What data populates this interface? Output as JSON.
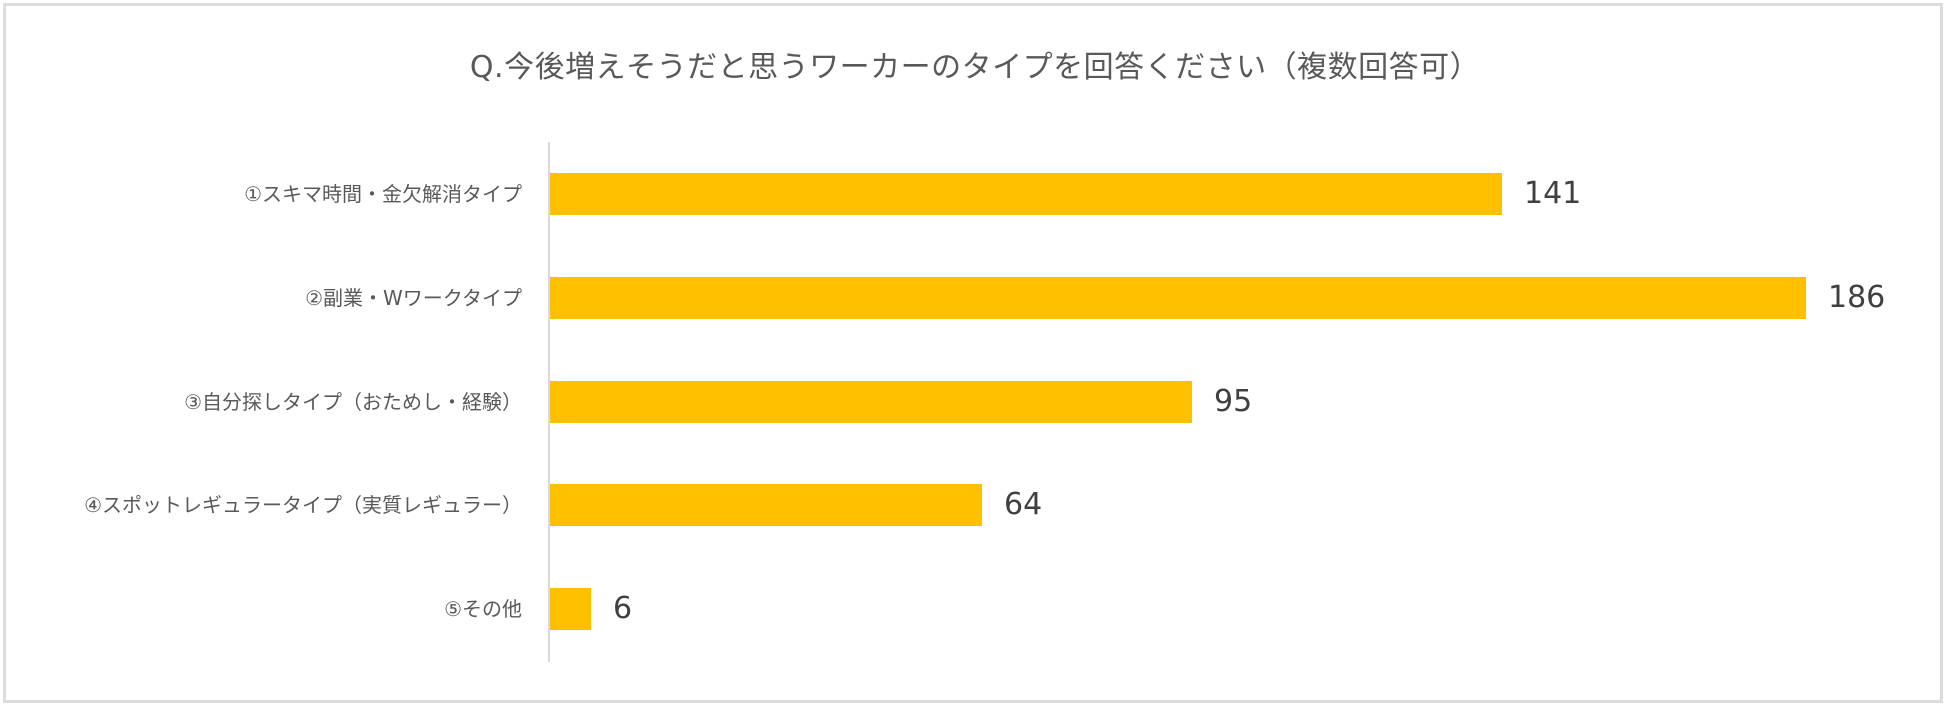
{
  "chart": {
    "title": "Q.今後増えそうだと思うワーカーのタイプを回答ください（複数回答可）",
    "bar_color": "#FFC000",
    "axis_color": "#D9D9D9",
    "categories": [
      "①スキマ時間・金欠解消タイプ",
      "②副業・Wワークタイプ",
      "③自分探しタイプ（おためし・経験）",
      "④スポットレギュラータイプ（実質レギュラー）",
      "⑤その他"
    ],
    "values": [
      "141",
      "186",
      "95",
      "64",
      "6"
    ]
  },
  "chart_data": {
    "type": "bar",
    "orientation": "horizontal",
    "title": "Q.今後増えそうだと思うワーカーのタイプを回答ください（複数回答可）",
    "categories": [
      "①スキマ時間・金欠解消タイプ",
      "②副業・Wワークタイプ",
      "③自分探しタイプ（おためし・経験）",
      "④スポットレギュラータイプ（実質レギュラー）",
      "⑤その他"
    ],
    "values": [
      141,
      186,
      95,
      64,
      6
    ],
    "xlabel": "",
    "ylabel": "",
    "xlim": [
      0,
      186
    ],
    "grid": false,
    "legend": null,
    "data_labels": true,
    "color": "#FFC000"
  }
}
